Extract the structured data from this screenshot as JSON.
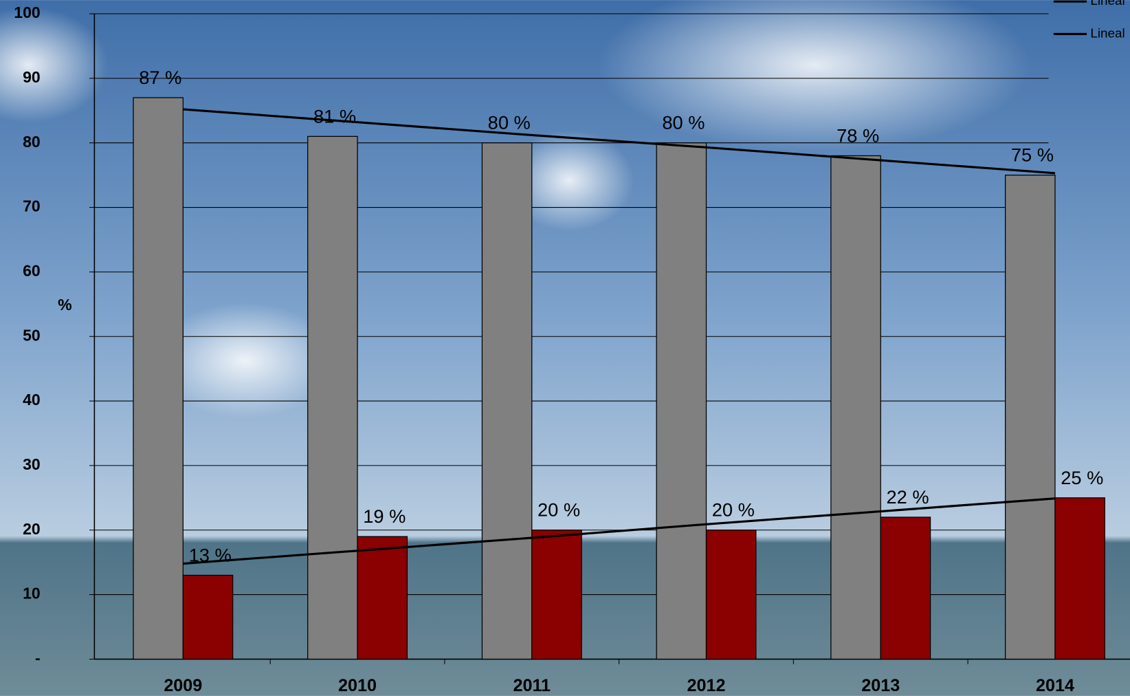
{
  "chart_data": {
    "type": "bar",
    "categories": [
      "2009",
      "2010",
      "2011",
      "2012",
      "2013",
      "2014"
    ],
    "series": [
      {
        "color": "#808080",
        "values": [
          87,
          81,
          80,
          80,
          78,
          75
        ],
        "value_labels": [
          "87 %",
          "81 %",
          "80 %",
          "80 %",
          "78 %",
          "75 %"
        ]
      },
      {
        "color": "#8b0000",
        "values": [
          13,
          19,
          20,
          20,
          22,
          25
        ],
        "value_labels": [
          "13 %",
          "19 %",
          "20 %",
          "20 %",
          "22 %",
          "25 %"
        ]
      }
    ],
    "trendlines": [
      {
        "name": "Lineal",
        "color": "#000000",
        "values": [
          85.2,
          83.2,
          81.2,
          79.3,
          77.3,
          75.3
        ]
      },
      {
        "name": "Lineal",
        "color": "#000000",
        "values": [
          14.8,
          16.8,
          18.8,
          20.9,
          22.9,
          24.9
        ]
      }
    ],
    "y_label": "%",
    "ylim": [
      0,
      100
    ],
    "yticks": [
      {
        "value": 0,
        "label": "-"
      },
      10,
      20,
      30,
      40,
      50,
      60,
      70,
      80,
      90,
      100
    ],
    "grid": true
  }
}
